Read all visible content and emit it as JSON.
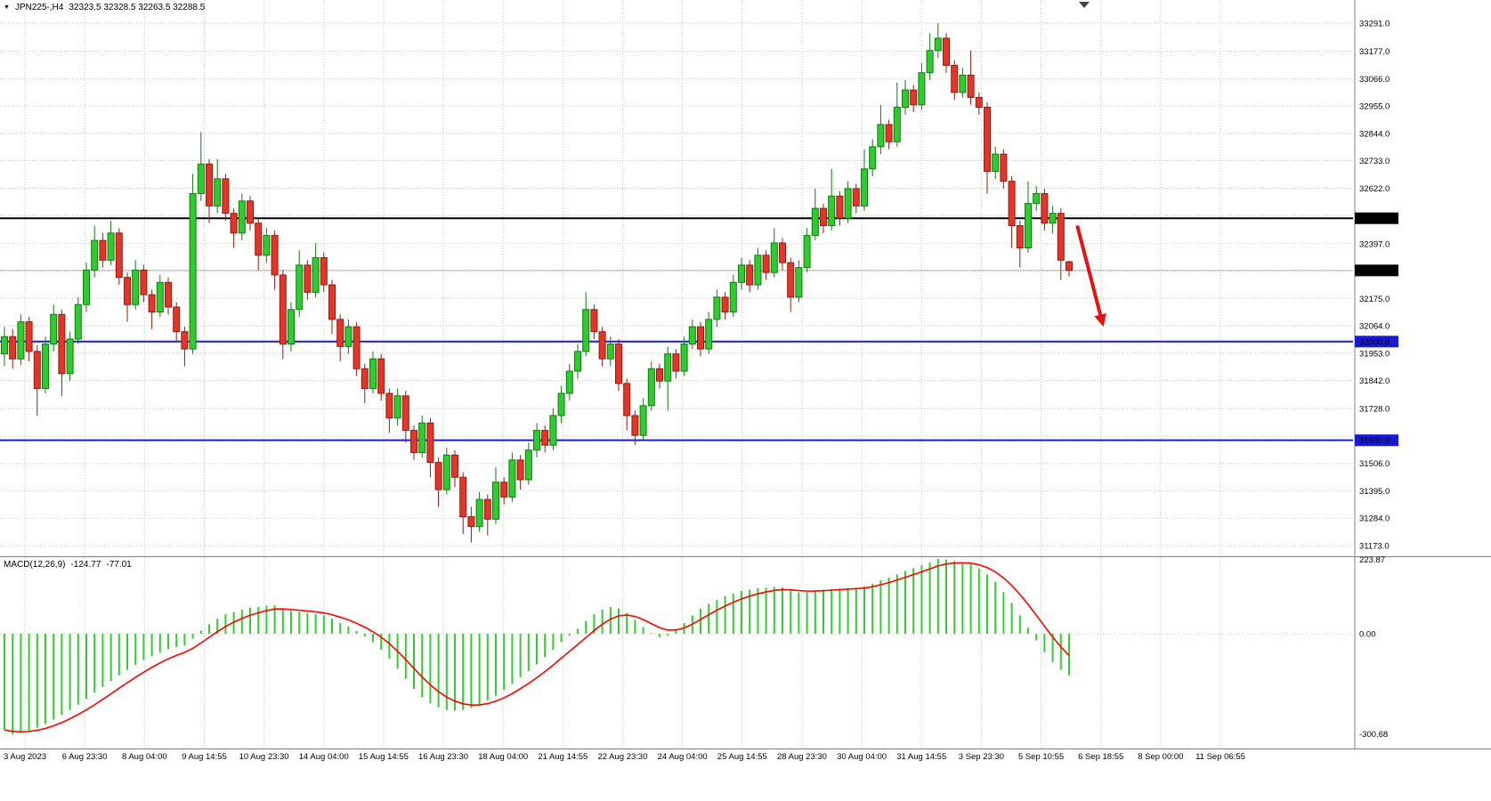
{
  "header": {
    "panel_toggle_icon": "▼",
    "symbol_period": "JPN225-,H4",
    "ohlc": "32323.5 32328.5 32263.5 32288.5"
  },
  "macd_label": {
    "title": "MACD(12,26,9)",
    "macd_value": "-124.77",
    "signal_value": "-77.01"
  },
  "chart_data": {
    "type": "candlestick",
    "title": "JPN225-,H4",
    "price_axis": {
      "top": 33291.0,
      "bottom": 31173.0,
      "tick_labels": [
        "33291.0",
        "33177.0",
        "33066.0",
        "32955.0",
        "32844.0",
        "32733.0",
        "32622.0",
        "32397.0",
        "32175.0",
        "32064.0",
        "31953.0",
        "31842.0",
        "31728.0",
        "31506.0",
        "31395.0",
        "31284.0",
        "31173.0"
      ],
      "grid_only_ticks": [
        32511,
        32286,
        31617
      ],
      "line_labels": [
        {
          "text": "32500.0",
          "value": 32500,
          "bg": "#000000"
        },
        {
          "text": "32288.5",
          "value": 32288.5,
          "bg": "#000000"
        },
        {
          "text": "32000.0",
          "value": 32000,
          "bg": "#1a1ad6"
        },
        {
          "text": "31600.0",
          "value": 31600,
          "bg": "#1a1ad6"
        }
      ]
    },
    "hlines": [
      {
        "price": 32500,
        "color": "#000000",
        "width": 2
      },
      {
        "price": 32000,
        "color": "#1a1ad6",
        "width": 2
      },
      {
        "price": 31600,
        "color": "#1a1ad6",
        "width": 2
      }
    ],
    "bid_price": 32288.5,
    "x_labels": [
      "3 Aug 2023",
      "6 Aug 23:30",
      "8 Aug 04:00",
      "9 Aug 14:55",
      "10 Aug 23:30",
      "14 Aug 04:00",
      "15 Aug 14:55",
      "16 Aug 23:30",
      "18 Aug 04:00",
      "21 Aug 14:55",
      "22 Aug 23:30",
      "24 Aug 04:00",
      "25 Aug 14:55",
      "28 Aug 23:30",
      "30 Aug 04:00",
      "31 Aug 14:55",
      "3 Sep 23:30",
      "5 Sep 10:55",
      "6 Sep 18:55",
      "8 Sep 00:00",
      "11 Sep 06:55"
    ],
    "candles": [
      [
        31950,
        32060,
        31900,
        32020
      ],
      [
        32020,
        32050,
        31890,
        31930
      ],
      [
        31930,
        32110,
        31905,
        32080
      ],
      [
        32080,
        32100,
        31920,
        31960
      ],
      [
        31960,
        31985,
        31700,
        31810
      ],
      [
        31810,
        32020,
        31790,
        31990
      ],
      [
        31990,
        32150,
        31960,
        32110
      ],
      [
        32110,
        32130,
        31780,
        31870
      ],
      [
        31870,
        32040,
        31840,
        32010
      ],
      [
        32010,
        32180,
        31990,
        32150
      ],
      [
        32150,
        32320,
        32120,
        32290
      ],
      [
        32290,
        32470,
        32260,
        32410
      ],
      [
        32410,
        32440,
        32300,
        32330
      ],
      [
        32330,
        32490,
        32310,
        32440
      ],
      [
        32440,
        32460,
        32230,
        32260
      ],
      [
        32260,
        32280,
        32080,
        32150
      ],
      [
        32150,
        32330,
        32130,
        32290
      ],
      [
        32290,
        32310,
        32160,
        32190
      ],
      [
        32190,
        32210,
        32050,
        32120
      ],
      [
        32120,
        32270,
        32100,
        32240
      ],
      [
        32240,
        32260,
        32110,
        32140
      ],
      [
        32140,
        32160,
        32000,
        32040
      ],
      [
        32040,
        32060,
        31900,
        31970
      ],
      [
        31970,
        32680,
        31950,
        32600
      ],
      [
        32600,
        32850,
        32570,
        32720
      ],
      [
        32720,
        32740,
        32480,
        32550
      ],
      [
        32550,
        32740,
        32520,
        32660
      ],
      [
        32660,
        32680,
        32490,
        32520
      ],
      [
        32520,
        32540,
        32380,
        32440
      ],
      [
        32440,
        32600,
        32410,
        32570
      ],
      [
        32570,
        32590,
        32450,
        32480
      ],
      [
        32480,
        32500,
        32290,
        32350
      ],
      [
        32350,
        32460,
        32320,
        32430
      ],
      [
        32430,
        32450,
        32210,
        32270
      ],
      [
        32270,
        32290,
        31930,
        31990
      ],
      [
        31990,
        32160,
        31960,
        32130
      ],
      [
        32130,
        32370,
        32100,
        32310
      ],
      [
        32310,
        32330,
        32170,
        32200
      ],
      [
        32200,
        32400,
        32180,
        32340
      ],
      [
        32340,
        32360,
        32200,
        32230
      ],
      [
        32230,
        32250,
        32030,
        32090
      ],
      [
        32090,
        32110,
        31920,
        31980
      ],
      [
        31980,
        32090,
        31950,
        32060
      ],
      [
        32060,
        32080,
        31860,
        31890
      ],
      [
        31890,
        31910,
        31750,
        31810
      ],
      [
        31810,
        31960,
        31790,
        31930
      ],
      [
        31930,
        31950,
        31760,
        31790
      ],
      [
        31790,
        31810,
        31630,
        31690
      ],
      [
        31690,
        31810,
        31660,
        31780
      ],
      [
        31780,
        31800,
        31590,
        31640
      ],
      [
        31640,
        31660,
        31520,
        31550
      ],
      [
        31550,
        31700,
        31530,
        31670
      ],
      [
        31670,
        31690,
        31450,
        31510
      ],
      [
        31510,
        31530,
        31330,
        31400
      ],
      [
        31400,
        31570,
        31380,
        31540
      ],
      [
        31540,
        31560,
        31410,
        31450
      ],
      [
        31450,
        31470,
        31220,
        31290
      ],
      [
        31290,
        31330,
        31185,
        31250
      ],
      [
        31250,
        31390,
        31230,
        31360
      ],
      [
        31360,
        31380,
        31215,
        31280
      ],
      [
        31280,
        31490,
        31260,
        31430
      ],
      [
        31430,
        31450,
        31340,
        31370
      ],
      [
        31370,
        31550,
        31350,
        31520
      ],
      [
        31520,
        31540,
        31400,
        31440
      ],
      [
        31440,
        31590,
        31420,
        31560
      ],
      [
        31560,
        31670,
        31530,
        31640
      ],
      [
        31640,
        31660,
        31550,
        31580
      ],
      [
        31580,
        31730,
        31560,
        31700
      ],
      [
        31700,
        31820,
        31670,
        31790
      ],
      [
        31790,
        31910,
        31760,
        31880
      ],
      [
        31880,
        31990,
        31850,
        31960
      ],
      [
        31960,
        32200,
        31940,
        32130
      ],
      [
        32130,
        32150,
        32010,
        32040
      ],
      [
        32040,
        32060,
        31900,
        31930
      ],
      [
        31930,
        32020,
        31900,
        31990
      ],
      [
        31990,
        32010,
        31800,
        31830
      ],
      [
        31830,
        31850,
        31640,
        31700
      ],
      [
        31700,
        31720,
        31580,
        31620
      ],
      [
        31620,
        31770,
        31600,
        31740
      ],
      [
        31740,
        31920,
        31720,
        31890
      ],
      [
        31890,
        31910,
        31810,
        31840
      ],
      [
        31840,
        31980,
        31720,
        31950
      ],
      [
        31950,
        31970,
        31850,
        31880
      ],
      [
        31880,
        32020,
        31860,
        31990
      ],
      [
        31990,
        32090,
        31970,
        32060
      ],
      [
        32060,
        32080,
        31940,
        31970
      ],
      [
        31970,
        32120,
        31950,
        32090
      ],
      [
        32090,
        32210,
        32060,
        32180
      ],
      [
        32180,
        32200,
        32090,
        32120
      ],
      [
        32120,
        32270,
        32100,
        32240
      ],
      [
        32240,
        32340,
        32210,
        32310
      ],
      [
        32310,
        32330,
        32200,
        32230
      ],
      [
        32230,
        32380,
        32210,
        32350
      ],
      [
        32350,
        32370,
        32250,
        32280
      ],
      [
        32280,
        32460,
        32260,
        32400
      ],
      [
        32400,
        32420,
        32290,
        32320
      ],
      [
        32320,
        32340,
        32120,
        32180
      ],
      [
        32180,
        32330,
        32160,
        32300
      ],
      [
        32300,
        32460,
        32280,
        32430
      ],
      [
        32430,
        32620,
        32410,
        32540
      ],
      [
        32540,
        32560,
        32440,
        32470
      ],
      [
        32470,
        32700,
        32450,
        32590
      ],
      [
        32590,
        32610,
        32470,
        32500
      ],
      [
        32500,
        32650,
        32480,
        32620
      ],
      [
        32620,
        32640,
        32520,
        32550
      ],
      [
        32550,
        32780,
        32530,
        32700
      ],
      [
        32700,
        32820,
        32670,
        32790
      ],
      [
        32790,
        32960,
        32760,
        32880
      ],
      [
        32880,
        32900,
        32780,
        32810
      ],
      [
        32810,
        33050,
        32790,
        32950
      ],
      [
        32950,
        33060,
        32920,
        33020
      ],
      [
        33020,
        33040,
        32930,
        32960
      ],
      [
        32960,
        33130,
        32940,
        33090
      ],
      [
        33090,
        33250,
        33060,
        33180
      ],
      [
        33180,
        33291,
        33150,
        33230
      ],
      [
        33230,
        33250,
        33090,
        33120
      ],
      [
        33120,
        33140,
        32980,
        33010
      ],
      [
        33010,
        33110,
        32990,
        33080
      ],
      [
        33080,
        33180,
        32960,
        32990
      ],
      [
        32990,
        33010,
        32920,
        32950
      ],
      [
        32950,
        32970,
        32600,
        32690
      ],
      [
        32690,
        32790,
        32660,
        32760
      ],
      [
        32760,
        32780,
        32620,
        32650
      ],
      [
        32650,
        32670,
        32380,
        32470
      ],
      [
        32470,
        32490,
        32300,
        32380
      ],
      [
        32380,
        32650,
        32360,
        32560
      ],
      [
        32560,
        32630,
        32530,
        32600
      ],
      [
        32600,
        32620,
        32450,
        32480
      ],
      [
        32480,
        32550,
        32440,
        32520
      ],
      [
        32520,
        32540,
        32250,
        32330
      ],
      [
        32323.5,
        32328.5,
        32263.5,
        32288.5
      ]
    ],
    "arrow": {
      "from_index": 131,
      "from_price": 32470,
      "to_index": 134.2,
      "to_price": 32060,
      "color": "#e81010"
    },
    "macd": {
      "title": "MACD(12,26,9)",
      "value": -124.77,
      "signal": -77.01,
      "max": 223.87,
      "min": -300.68,
      "axis_labels": {
        "max": "223.87",
        "zero": "0.00",
        "min": "-300.68"
      },
      "signal_alpha": 0.3,
      "histogram": [
        -288,
        -300.68,
        -297,
        -290,
        -281,
        -270,
        -257,
        -243,
        -228,
        -212,
        -195,
        -177,
        -159,
        -141,
        -124,
        -108,
        -93,
        -79,
        -67,
        -56,
        -47,
        -40,
        -35,
        -15,
        10,
        28,
        45,
        58,
        65,
        72,
        78,
        80,
        84,
        85,
        75,
        68,
        66,
        62,
        60,
        55,
        45,
        32,
        22,
        8,
        -8,
        -25,
        -48,
        -75,
        -105,
        -135,
        -165,
        -190,
        -208,
        -220,
        -228,
        -230,
        -228,
        -222,
        -212,
        -200,
        -185,
        -168,
        -150,
        -130,
        -112,
        -92,
        -70,
        -48,
        -25,
        -5,
        15,
        38,
        58,
        72,
        80,
        76,
        62,
        42,
        20,
        2,
        -10,
        -6,
        12,
        32,
        55,
        75,
        90,
        102,
        112,
        120,
        128,
        132,
        136,
        138,
        140,
        138,
        130,
        124,
        124,
        128,
        131,
        134,
        135,
        137,
        138,
        142,
        150,
        160,
        168,
        178,
        188,
        196,
        205,
        214,
        223.87,
        222,
        218,
        214,
        208,
        196,
        178,
        155,
        125,
        92,
        55,
        18,
        -20,
        -55,
        -85,
        -108,
        -124.77
      ]
    },
    "colors": {
      "background": "#ffffff",
      "grid": "#c9c9c9",
      "bull_fill": "#2ecc2e",
      "bull_stroke": "#117a11",
      "bear_fill": "#e53528",
      "bear_stroke": "#8f1d15",
      "macd_histogram": "#33cc33",
      "macd_signal": "#ff0000",
      "axis_text": "#000000",
      "bid_line": "#9a9a9a",
      "separator": "#808080",
      "shift_marker": "#444444"
    }
  }
}
